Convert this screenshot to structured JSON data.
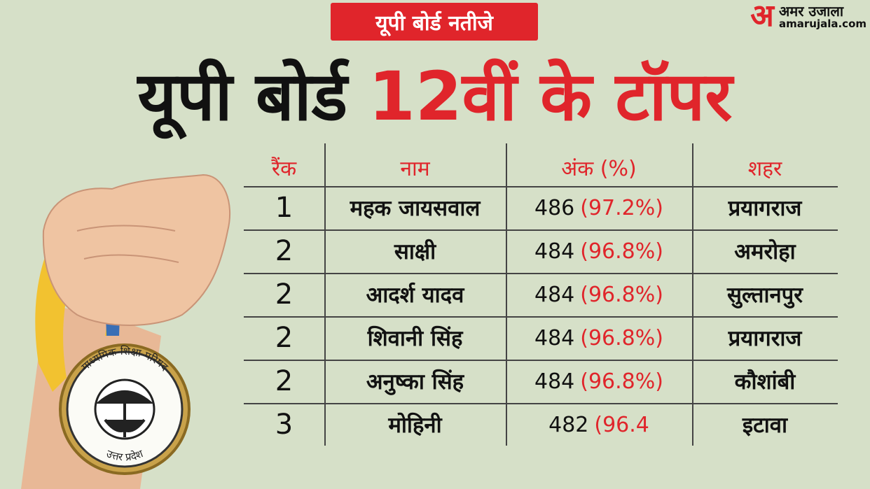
{
  "badge": "यूपी बोर्ड नतीजे",
  "title": {
    "part1": "यूपी बोर्ड",
    "part2": "12वीं के टॉपर"
  },
  "logo": {
    "mark": "अ",
    "name": "अमर उजाला",
    "site": "amarujala.com"
  },
  "medal": {
    "top": "माध्यमिक शिक्षा परिषद",
    "bottom": "उत्तर प्रदेश"
  },
  "table": {
    "headers": [
      "रैंक",
      "नाम",
      "अंक (%)",
      "शहर"
    ],
    "rows": [
      {
        "rank": "1",
        "name": "महक जायसवाल",
        "score": "486",
        "percent": "(97.2%)",
        "city": "प्रयागराज"
      },
      {
        "rank": "2",
        "name": "साक्षी",
        "score": "484",
        "percent": "(96.8%)",
        "city": "अमरोहा"
      },
      {
        "rank": "2",
        "name": "आदर्श यादव",
        "score": "484",
        "percent": "(96.8%)",
        "city": "सुल्तानपुर"
      },
      {
        "rank": "2",
        "name": "शिवानी सिंह",
        "score": "484",
        "percent": "(96.8%)",
        "city": "प्रयागराज"
      },
      {
        "rank": "2",
        "name": "अनुष्का सिंह",
        "score": "484",
        "percent": "(96.8%)",
        "city": "कौशांबी"
      },
      {
        "rank": "3",
        "name": "मोहिनी",
        "score": "482",
        "percent": "(96.4",
        "city": "इटावा"
      }
    ]
  }
}
